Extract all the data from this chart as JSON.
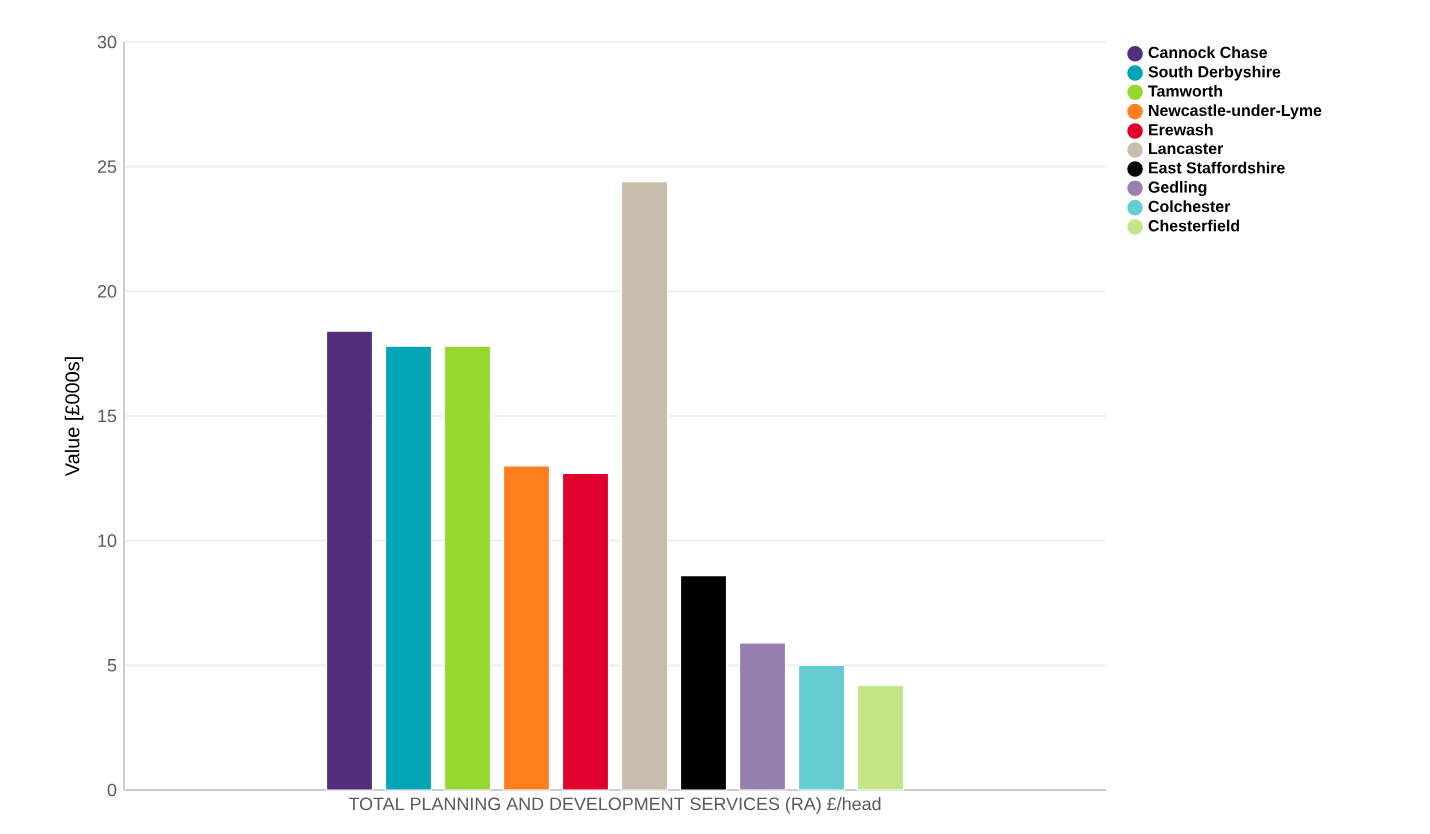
{
  "chart_data": {
    "type": "bar",
    "ylabel": "Value [£000s]",
    "categories": [
      "TOTAL PLANNING AND DEVELOPMENT SERVICES (RA) £/head"
    ],
    "series": [
      {
        "name": "Cannock Chase",
        "color": "#512d7c",
        "values": [
          18.4
        ]
      },
      {
        "name": "South Derbyshire",
        "color": "#00a5b5",
        "values": [
          17.8
        ]
      },
      {
        "name": "Tamworth",
        "color": "#97d730",
        "values": [
          17.8
        ]
      },
      {
        "name": "Newcastle-under-Lyme",
        "color": "#ff7f1e",
        "values": [
          13.0
        ]
      },
      {
        "name": "Erewash",
        "color": "#e0002e",
        "values": [
          12.7
        ]
      },
      {
        "name": "Lancaster",
        "color": "#c8bcad",
        "values": [
          24.4
        ]
      },
      {
        "name": "East Staffordshire",
        "color": "#000000",
        "values": [
          8.6
        ]
      },
      {
        "name": "Gedling",
        "color": "#9580b0",
        "values": [
          5.9
        ]
      },
      {
        "name": "Colchester",
        "color": "#65ccd2",
        "values": [
          5.0
        ]
      },
      {
        "name": "Chesterfield",
        "color": "#c3e586",
        "values": [
          4.2
        ]
      }
    ],
    "ylim": [
      0,
      30
    ],
    "yticks": [
      0,
      5,
      10,
      15,
      20,
      25,
      30
    ],
    "grid": "y",
    "legend": "top right",
    "marker": "circle"
  }
}
